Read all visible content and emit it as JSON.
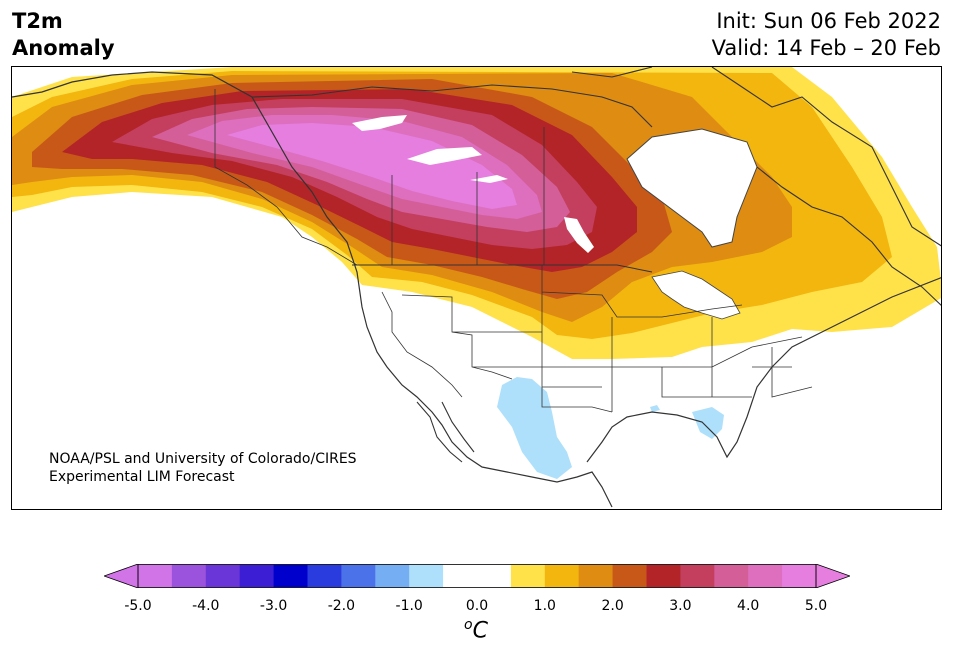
{
  "title": {
    "variable_line1": "T2m",
    "variable_line2": "Anomaly",
    "init": "Init: Sun 06 Feb 2022",
    "valid": "Valid: 14 Feb – 20 Feb"
  },
  "credit": {
    "line1": "NOAA/PSL and University of Colorado/CIRES",
    "line2": "Experimental LIM Forecast"
  },
  "colorbar": {
    "unit_base": "C",
    "unit_sup": "o",
    "ticks": [
      "-5.0",
      "-4.0",
      "-3.0",
      "-2.0",
      "-1.0",
      "0.0",
      "1.0",
      "2.0",
      "3.0",
      "4.0",
      "5.0"
    ],
    "colors": [
      "#d074e8",
      "#9b52dc",
      "#6a36d8",
      "#3c1ed4",
      "#0000cd",
      "#2a3cde",
      "#4b72e8",
      "#76aef3",
      "#aee0fb",
      "#ffffff",
      "#ffffff",
      "#ffe24a",
      "#f3b60e",
      "#de8c12",
      "#c85818",
      "#b32428",
      "#c43e5e",
      "#d45e98",
      "#dd6fbe",
      "#e67ee0"
    ],
    "under_color": "#d074e8",
    "over_color": "#e67ee0"
  }
}
